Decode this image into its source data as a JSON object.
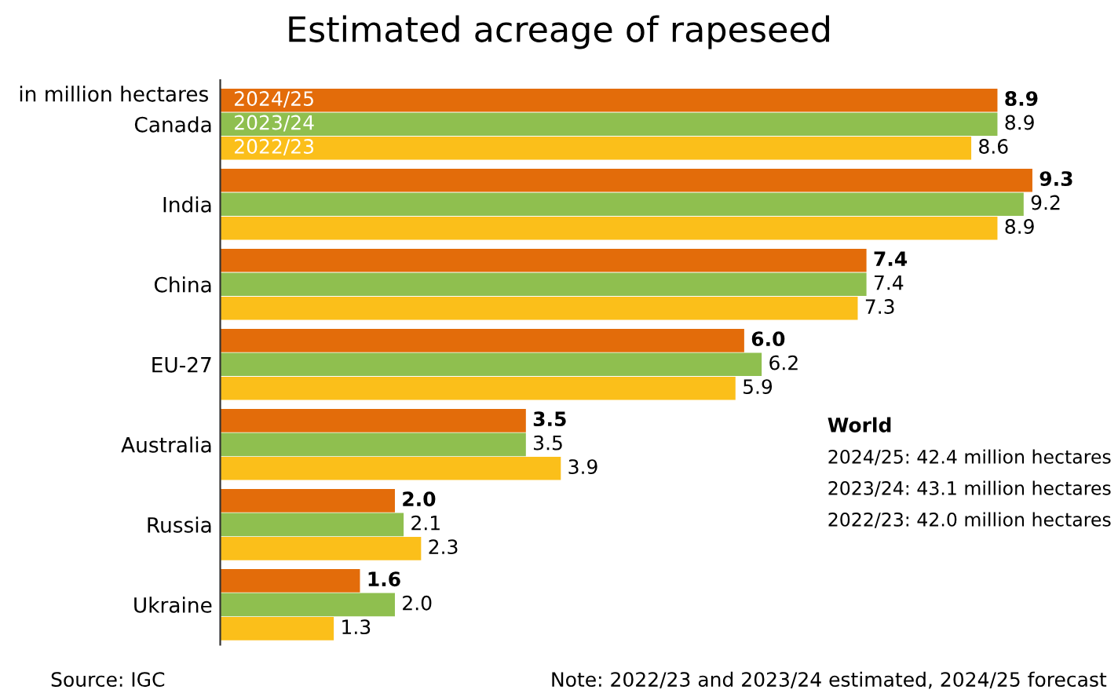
{
  "chart_data": {
    "type": "bar",
    "orientation": "horizontal",
    "title": "Estimated acreage of rapeseed",
    "categories": [
      "Canada",
      "India",
      "China",
      "EU-27",
      "Australia",
      "Russia",
      "Ukraine"
    ],
    "series": [
      {
        "name": "2024/25",
        "color": "#e36c0a",
        "values": [
          8.9,
          9.3,
          7.4,
          6.0,
          3.5,
          2.0,
          1.6
        ],
        "value_labels": [
          "8.9",
          "9.3",
          "7.4",
          "6.0",
          "3.5",
          "2.0",
          "1.6"
        ]
      },
      {
        "name": "2023/24",
        "color": "#8fbf4f",
        "values": [
          8.9,
          9.2,
          7.4,
          6.2,
          3.5,
          2.1,
          2.0
        ],
        "value_labels": [
          "8.9",
          "9.2",
          "7.4",
          "6.2",
          "3.5",
          "2.1",
          "2.0"
        ]
      },
      {
        "name": "2022/23",
        "color": "#fbbf1a",
        "values": [
          8.6,
          8.9,
          7.3,
          5.9,
          3.9,
          2.3,
          1.3
        ],
        "value_labels": [
          "8.6",
          "8.9",
          "7.3",
          "5.9",
          "3.9",
          "2.3",
          "1.3"
        ]
      }
    ],
    "annotations": [
      "in million hectares",
      "World",
      "2024/25: 42.4 million hectares",
      "2023/24: 43.1 million hectares",
      "2022/23: 42.0 million hectares",
      "Source: IGC",
      "Note: 2022/23 and 2023/24 estimated, 2024/25 forecast"
    ],
    "legend": false,
    "grid": false
  }
}
